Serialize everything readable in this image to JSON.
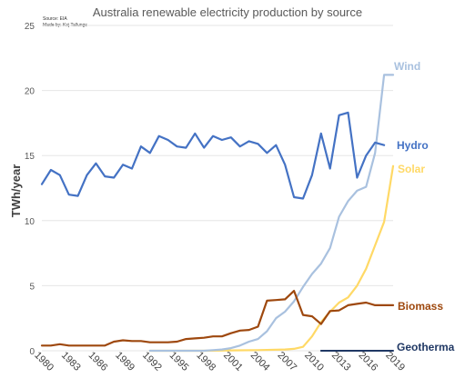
{
  "chart_data": {
    "type": "line",
    "title": "Australia renewable electricity production by source",
    "notes": [
      "Source: EIA",
      "Made by: Koj Tallungs"
    ],
    "ylabel": "TWh/year",
    "xlabel": "",
    "ylim": [
      0,
      25
    ],
    "yticks": [
      0,
      5,
      10,
      15,
      20,
      25
    ],
    "xlim": [
      1980,
      2019
    ],
    "xticks": [
      1980,
      1983,
      1986,
      1989,
      1992,
      1995,
      1998,
      2001,
      2004,
      2007,
      2010,
      2013,
      2016,
      2019
    ],
    "grid": true,
    "legend": "none",
    "series": [
      {
        "name": "Hydro",
        "color": "#4472c4",
        "x": [
          1980,
          1981,
          1982,
          1983,
          1984,
          1985,
          1986,
          1987,
          1988,
          1989,
          1990,
          1991,
          1992,
          1993,
          1994,
          1995,
          1996,
          1997,
          1998,
          1999,
          2000,
          2001,
          2002,
          2003,
          2004,
          2005,
          2006,
          2007,
          2008,
          2009,
          2010,
          2011,
          2012,
          2013,
          2014,
          2015,
          2016,
          2017,
          2018
        ],
        "values": [
          12.8,
          13.9,
          13.5,
          12.0,
          11.9,
          13.5,
          14.4,
          13.4,
          13.3,
          14.3,
          14.0,
          15.7,
          15.2,
          16.5,
          16.2,
          15.7,
          15.6,
          16.7,
          15.6,
          16.5,
          16.2,
          16.4,
          15.7,
          16.1,
          15.9,
          15.2,
          15.8,
          14.3,
          11.8,
          11.7,
          13.5,
          16.7,
          14.0,
          18.1,
          18.3,
          13.3,
          15.0,
          16.0,
          15.8
        ]
      },
      {
        "name": "Wind",
        "color": "#a9c1df",
        "x": [
          1992,
          1994,
          1996,
          1998,
          1999,
          2000,
          2001,
          2002,
          2003,
          2004,
          2005,
          2006,
          2007,
          2008,
          2009,
          2010,
          2011,
          2012,
          2013,
          2014,
          2015,
          2016,
          2017,
          2018,
          2019
        ],
        "values": [
          0,
          0,
          0,
          0,
          0.05,
          0.1,
          0.2,
          0.4,
          0.7,
          0.9,
          1.5,
          2.5,
          3.0,
          3.8,
          4.9,
          5.9,
          6.7,
          7.9,
          10.3,
          11.5,
          12.3,
          12.6,
          15.2,
          21.2,
          21.2
        ]
      },
      {
        "name": "Solar",
        "color": "#ffd966",
        "x": [
          1992,
          1995,
          1998,
          2001,
          2004,
          2007,
          2008,
          2009,
          2010,
          2011,
          2012,
          2013,
          2014,
          2015,
          2016,
          2017,
          2018,
          2019
        ],
        "values": [
          0,
          0,
          0,
          0.03,
          0.05,
          0.1,
          0.15,
          0.3,
          1.1,
          2.2,
          3.0,
          3.7,
          4.1,
          5.0,
          6.3,
          8.1,
          9.9,
          14.2
        ]
      },
      {
        "name": "Biomass",
        "color": "#9e480e",
        "x": [
          1980,
          1981,
          1982,
          1983,
          1984,
          1985,
          1986,
          1987,
          1988,
          1989,
          1990,
          1991,
          1992,
          1993,
          1994,
          1995,
          1996,
          1997,
          1998,
          1999,
          2000,
          2001,
          2002,
          2003,
          2004,
          2005,
          2006,
          2007,
          2008,
          2009,
          2010,
          2011,
          2012,
          2013,
          2014,
          2015,
          2016,
          2017,
          2018,
          2019
        ],
        "values": [
          0.4,
          0.4,
          0.5,
          0.4,
          0.4,
          0.4,
          0.4,
          0.4,
          0.7,
          0.8,
          0.75,
          0.75,
          0.65,
          0.65,
          0.65,
          0.7,
          0.9,
          0.95,
          1.0,
          1.1,
          1.1,
          1.35,
          1.55,
          1.6,
          1.85,
          3.85,
          3.9,
          3.95,
          4.6,
          2.75,
          2.65,
          2.05,
          3.05,
          3.1,
          3.5,
          3.6,
          3.7,
          3.5,
          3.5,
          3.5
        ]
      },
      {
        "name": "Geothermal",
        "color": "#203864",
        "x": [
          2011,
          2012,
          2013,
          2014,
          2015,
          2016,
          2017,
          2018,
          2019
        ],
        "values": [
          0,
          0,
          0,
          0,
          0,
          0,
          0,
          0,
          0
        ]
      }
    ]
  }
}
